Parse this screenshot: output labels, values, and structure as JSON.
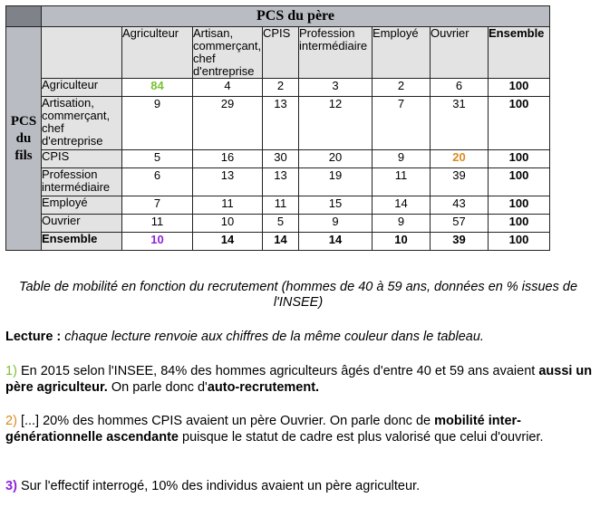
{
  "table": {
    "super_header": "PCS du père",
    "row_group_label": [
      "PCS",
      "du",
      "fils"
    ],
    "col_headers": [
      "Agriculteur",
      "Artisan, commerçant, chef d'entreprise",
      "CPIS",
      "Profession intermédiaire",
      "Employé",
      "Ouvrier",
      "Ensemble"
    ],
    "rows": [
      {
        "label": "Agriculteur",
        "values": [
          "84",
          "4",
          "2",
          "3",
          "2",
          "6",
          "100"
        ]
      },
      {
        "label": "Artisation, commerçant, chef d'entreprise",
        "values": [
          "9",
          "29",
          "13",
          "12",
          "7",
          "31",
          "100"
        ]
      },
      {
        "label": "CPIS",
        "values": [
          "5",
          "16",
          "30",
          "20",
          "9",
          "20",
          "100"
        ]
      },
      {
        "label": "Profession intermédiaire",
        "values": [
          "6",
          "13",
          "13",
          "19",
          "11",
          "39",
          "100"
        ]
      },
      {
        "label": "Employé",
        "values": [
          "7",
          "11",
          "11",
          "15",
          "14",
          "43",
          "100"
        ]
      },
      {
        "label": "Ouvrier",
        "values": [
          "11",
          "10",
          "5",
          "9",
          "9",
          "57",
          "100"
        ]
      },
      {
        "label": "Ensemble",
        "values": [
          "10",
          "14",
          "14",
          "14",
          "10",
          "39",
          "100"
        ]
      }
    ],
    "highlight_colors": {
      "green": "#7ac232",
      "orange": "#d98a1f",
      "purple": "#8f24d9"
    }
  },
  "caption": "Table de mobilité en fonction du recrutement (hommes de 40 à 59 ans, données en % issues de l'INSEE)",
  "lecture": {
    "label": "Lecture :",
    "text": "chaque lecture renvoie aux chiffres de la même couleur dans le tableau."
  },
  "p1": {
    "num": "1)",
    "t1": "En 2015 selon l'INSEE, 84% des hommes agriculteurs âgés d'entre 40 et 59 ans avaient",
    "b1": "aussi un père agriculteur.",
    "t2": "On parle donc d'",
    "b2": "auto-recrutement."
  },
  "p2": {
    "num": "2)",
    "t1": "[...] 20% des hommes CPIS avaient un père Ouvrier. On parle donc de",
    "b1": "mobilité inter-générationnelle ascendante",
    "t2": "puisque le statut de cadre est plus valorisé que celui d'ouvrier."
  },
  "p3": {
    "num": "3)",
    "t1": "Sur l'effectif interrogé, 10% des individus avaient un père agriculteur."
  }
}
